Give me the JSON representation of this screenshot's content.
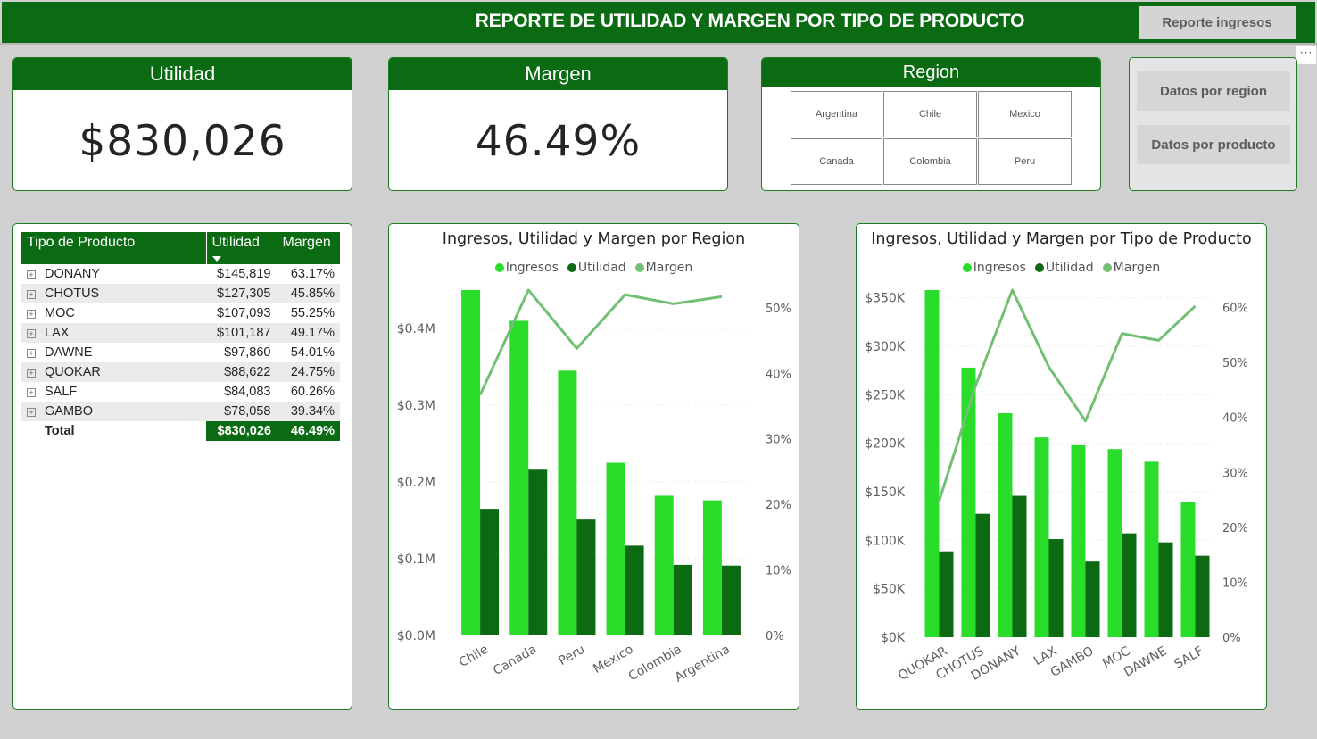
{
  "header": {
    "title": "REPORTE DE UTILIDAD Y MARGEN POR TIPO DE PRODUCTO",
    "report_button": "Reporte ingresos"
  },
  "more_options": "···",
  "kpis": {
    "utilidad": {
      "label": "Utilidad",
      "value": "$830,026"
    },
    "margen": {
      "label": "Margen",
      "value": "46.49%"
    }
  },
  "region_slicer": {
    "label": "Region",
    "options": [
      "Argentina",
      "Chile",
      "Mexico",
      "Canada",
      "Colombia",
      "Peru"
    ]
  },
  "nav": {
    "by_region": "Datos por region",
    "by_product": "Datos por producto"
  },
  "matrix": {
    "headers": [
      "Tipo de Producto",
      "Utilidad",
      "Margen"
    ],
    "rows": [
      {
        "name": "DONANY",
        "utilidad": "$145,819",
        "margen": "63.17%"
      },
      {
        "name": "CHOTUS",
        "utilidad": "$127,305",
        "margen": "45.85%"
      },
      {
        "name": "MOC",
        "utilidad": "$107,093",
        "margen": "55.25%"
      },
      {
        "name": "LAX",
        "utilidad": "$101,187",
        "margen": "49.17%"
      },
      {
        "name": "DAWNE",
        "utilidad": "$97,860",
        "margen": "54.01%"
      },
      {
        "name": "QUOKAR",
        "utilidad": "$88,622",
        "margen": "24.75%"
      },
      {
        "name": "SALF",
        "utilidad": "$84,083",
        "margen": "60.26%"
      },
      {
        "name": "GAMBO",
        "utilidad": "$78,058",
        "margen": "39.34%"
      }
    ],
    "total": {
      "label": "Total",
      "utilidad": "$830,026",
      "margen": "46.49%"
    }
  },
  "colors": {
    "ingresos": "#2bdd2b",
    "utilidad": "#0c6b12",
    "margen": "#73bf73",
    "header": "#0a6b12"
  },
  "chart_data": [
    {
      "type": "bar",
      "title": "Ingresos, Utilidad y Margen por Region",
      "legend": [
        "Ingresos",
        "Utilidad",
        "Margen"
      ],
      "categories": [
        "Chile",
        "Canada",
        "Peru",
        "Mexico",
        "Colombia",
        "Argentina"
      ],
      "series": [
        {
          "name": "Ingresos",
          "type": "bar",
          "axis": "left",
          "values": [
            0.45,
            0.41,
            0.345,
            0.225,
            0.182,
            0.176
          ]
        },
        {
          "name": "Utilidad",
          "type": "bar",
          "axis": "left",
          "values": [
            0.165,
            0.216,
            0.151,
            0.117,
            0.092,
            0.091
          ]
        },
        {
          "name": "Margen",
          "type": "line",
          "axis": "right",
          "values": [
            36.7,
            52.7,
            43.8,
            52.0,
            50.6,
            51.7
          ]
        }
      ],
      "y_left": {
        "ticks": [
          0,
          0.1,
          0.2,
          0.3,
          0.4
        ],
        "labels": [
          "$0.0M",
          "$0.1M",
          "$0.2M",
          "$0.3M",
          "$0.4M"
        ],
        "max": 0.45
      },
      "y_right": {
        "ticks": [
          0,
          10,
          20,
          30,
          40,
          50
        ],
        "labels": [
          "0%",
          "10%",
          "20%",
          "30%",
          "40%",
          "50%"
        ],
        "max": 52.7
      },
      "gridlines": true
    },
    {
      "type": "bar",
      "title": "Ingresos, Utilidad y Margen por Tipo de Producto",
      "legend": [
        "Ingresos",
        "Utilidad",
        "Margen"
      ],
      "categories": [
        "QUOKAR",
        "CHOTUS",
        "DONANY",
        "LAX",
        "GAMBO",
        "MOC",
        "DAWNE",
        "SALF"
      ],
      "series": [
        {
          "name": "Ingresos",
          "type": "bar",
          "axis": "left",
          "values": [
            358000,
            278000,
            231000,
            206000,
            198000,
            194000,
            181000,
            139000
          ]
        },
        {
          "name": "Utilidad",
          "type": "bar",
          "axis": "left",
          "values": [
            88622,
            127305,
            145819,
            101187,
            78058,
            107093,
            97860,
            84083
          ]
        },
        {
          "name": "Margen",
          "type": "line",
          "axis": "right",
          "values": [
            24.75,
            45.85,
            63.17,
            49.17,
            39.34,
            55.25,
            54.01,
            60.26
          ]
        }
      ],
      "y_left": {
        "ticks": [
          0,
          50000,
          100000,
          150000,
          200000,
          250000,
          300000,
          350000
        ],
        "labels": [
          "$0K",
          "$50K",
          "$100K",
          "$150K",
          "$200K",
          "$250K",
          "$300K",
          "$350K"
        ],
        "max": 358000
      },
      "y_right": {
        "ticks": [
          0,
          10,
          20,
          30,
          40,
          50,
          60
        ],
        "labels": [
          "0%",
          "10%",
          "20%",
          "30%",
          "40%",
          "50%",
          "60%"
        ],
        "max": 63.17
      },
      "gridlines": true
    }
  ]
}
